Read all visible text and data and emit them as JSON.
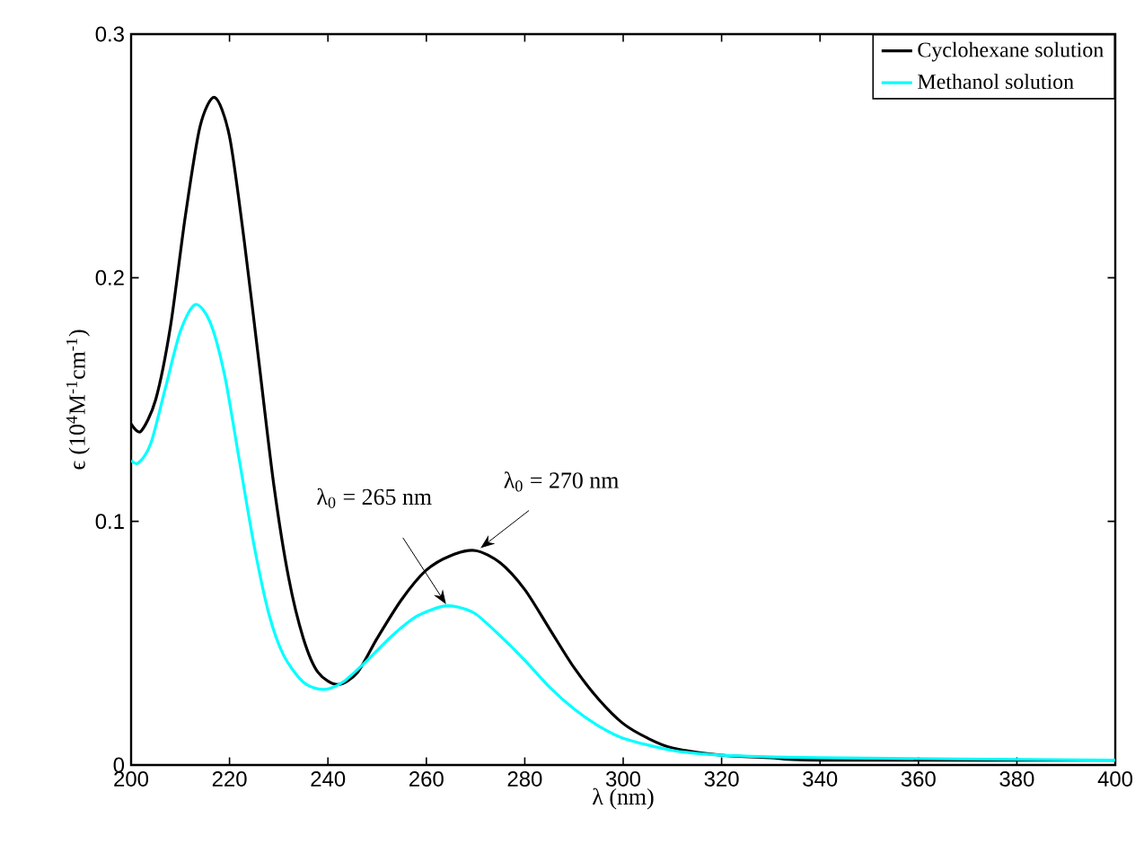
{
  "chart_data": {
    "type": "line",
    "xlabel": "λ (nm)",
    "ylabel": "ϵ (10$^{4}$M$^{-1}$cm$^{-1}$)",
    "xlim": [
      200,
      400
    ],
    "ylim": [
      0,
      0.3
    ],
    "xticks": [
      200,
      220,
      240,
      260,
      280,
      300,
      320,
      340,
      360,
      380,
      400
    ],
    "yticks": [
      0,
      0.1,
      0.2,
      0.3
    ],
    "grid": false,
    "legend": "top right",
    "marker": "none",
    "line_style": "solid",
    "annotations": [
      {
        "text": "λ$_{0}$ = 265 nm",
        "x": 264,
        "y": 0.066
      },
      {
        "text": "λ$_{0}$ = 270 nm",
        "x": 271,
        "y": 0.089
      }
    ],
    "series": [
      {
        "name": "Cyclohexane solution",
        "color": "#000000",
        "x": [
          200,
          202,
          205,
          208,
          211,
          214,
          217,
          220,
          223,
          226,
          229,
          232,
          235,
          238,
          242,
          246,
          250,
          255,
          260,
          265,
          270,
          275,
          280,
          285,
          290,
          295,
          300,
          305,
          310,
          320,
          330,
          340,
          400
        ],
        "values": [
          0.14,
          0.137,
          0.15,
          0.18,
          0.225,
          0.262,
          0.274,
          0.258,
          0.215,
          0.165,
          0.115,
          0.077,
          0.052,
          0.038,
          0.033,
          0.038,
          0.052,
          0.068,
          0.08,
          0.086,
          0.088,
          0.083,
          0.072,
          0.056,
          0.04,
          0.027,
          0.017,
          0.011,
          0.007,
          0.004,
          0.003,
          0.002,
          0.002
        ]
      },
      {
        "name": "Methanol solution",
        "color": "#00ffff",
        "x": [
          200,
          201.5,
          204,
          207,
          210,
          213,
          216,
          219,
          222,
          225,
          228,
          231,
          235,
          239,
          243,
          248,
          253,
          258,
          263,
          266,
          270,
          275,
          280,
          285,
          290,
          295,
          300,
          310,
          320,
          340,
          400
        ],
        "values": [
          0.125,
          0.124,
          0.132,
          0.155,
          0.178,
          0.189,
          0.182,
          0.16,
          0.125,
          0.09,
          0.062,
          0.045,
          0.034,
          0.031,
          0.034,
          0.043,
          0.053,
          0.061,
          0.065,
          0.065,
          0.062,
          0.053,
          0.043,
          0.032,
          0.023,
          0.016,
          0.011,
          0.006,
          0.004,
          0.003,
          0.002
        ]
      }
    ]
  }
}
